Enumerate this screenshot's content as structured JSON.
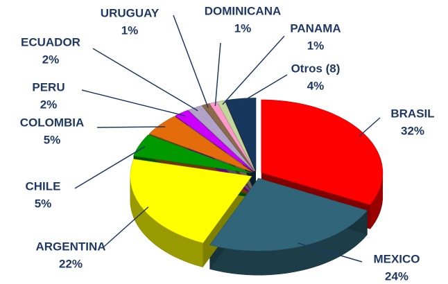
{
  "chart_data": {
    "type": "pie",
    "categories": [
      "BRASIL",
      "MEXICO",
      "ARGENTINA",
      "CHILE",
      "COLOMBIA",
      "PERU",
      "ECUADOR",
      "URUGUAY",
      "DOMINICANA",
      "PANAMA",
      "Otros (8)"
    ],
    "values": [
      32,
      24,
      22,
      5,
      5,
      2,
      2,
      1,
      1,
      1,
      4
    ],
    "value_labels": [
      "32%",
      "24%",
      "22%",
      "5%",
      "5%",
      "2%",
      "2%",
      "1%",
      "1%",
      "1%",
      "4%"
    ],
    "colors": [
      "#ff0000",
      "#31657a",
      "#ffff00",
      "#009900",
      "#e46c0a",
      "#cc00ff",
      "#b3a2c7",
      "#8b6b4a",
      "#ff99cc",
      "#c3d69b",
      "#17375e"
    ]
  }
}
